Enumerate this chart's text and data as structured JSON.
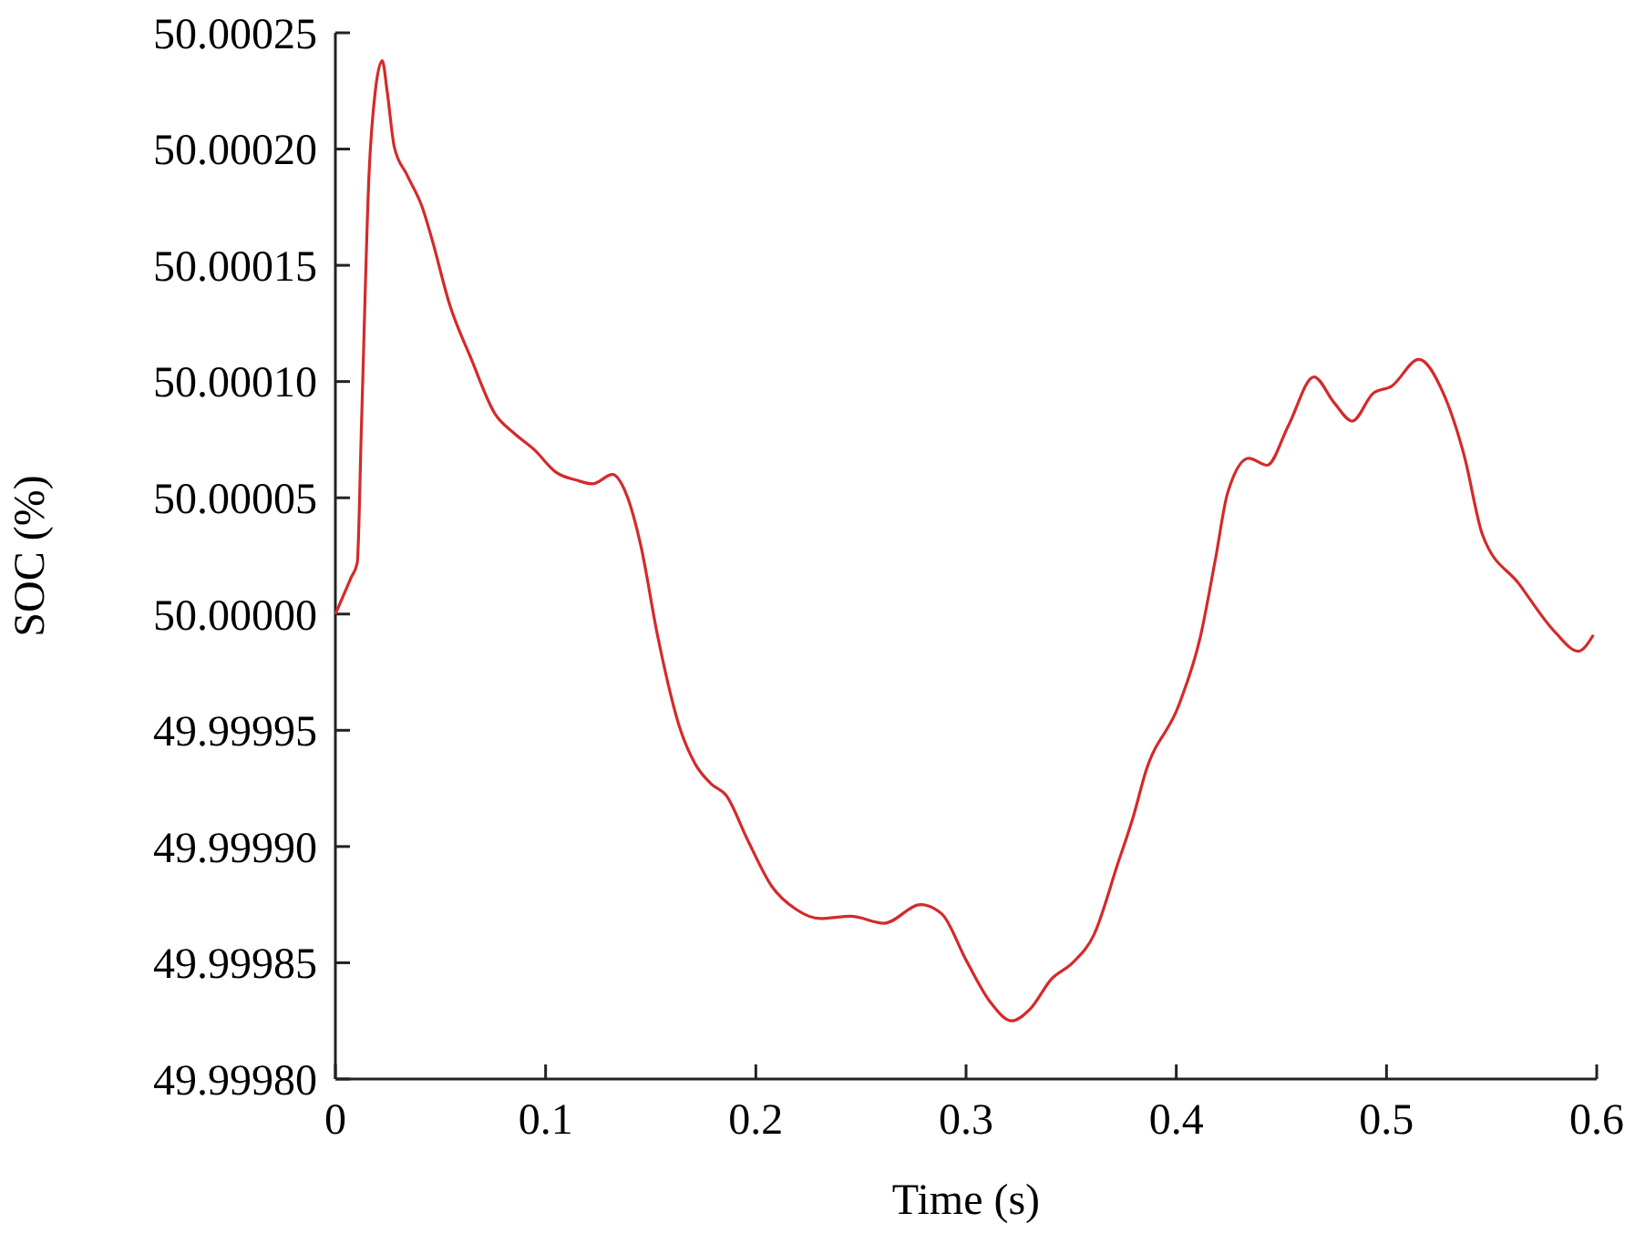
{
  "chart_data": {
    "type": "line",
    "xlabel": "Time (s)",
    "ylabel": "SOC (%)",
    "xlim": [
      0,
      0.6
    ],
    "xticks": [
      0,
      0.1,
      0.2,
      0.3,
      0.4,
      0.5,
      0.6
    ],
    "ylim": [
      49.9998,
      50.00025
    ],
    "yticks": [
      {
        "value": 49.9998,
        "label": "49.99980"
      },
      {
        "value": 49.99985,
        "label": "49.99985"
      },
      {
        "value": 49.9999,
        "label": "49.99990"
      },
      {
        "value": 49.99995,
        "label": "49.99995"
      },
      {
        "value": 50,
        "label": "50.00000"
      },
      {
        "value": 50.00005,
        "label": "50.00005"
      },
      {
        "value": 50.0001,
        "label": "50.00010"
      },
      {
        "value": 50.00015,
        "label": "50.00015"
      },
      {
        "value": 50.0002,
        "label": "50.00020"
      },
      {
        "value": 50.00025,
        "label": "50.00025"
      }
    ],
    "marker": "none",
    "line_style": "solid",
    "series": [
      {
        "color": "#d42a2a",
        "x": [
          0,
          0.0075,
          0.0104,
          0.0124,
          0.016,
          0.019,
          0.0223,
          0.0246,
          0.028,
          0.034,
          0.0413,
          0.0457,
          0.0544,
          0.0645,
          0.076,
          0.0847,
          0.0948,
          0.1049,
          0.115,
          0.1223,
          0.1318,
          0.1382,
          0.1454,
          0.1532,
          0.1642,
          0.1715,
          0.1787,
          0.1859,
          0.196,
          0.2075,
          0.2191,
          0.2307,
          0.2452,
          0.261,
          0.2784,
          0.2885,
          0.3001,
          0.3116,
          0.3218,
          0.3304,
          0.3406,
          0.3507,
          0.3608,
          0.3723,
          0.3796,
          0.3854,
          0.4013,
          0.4114,
          0.4186,
          0.4244,
          0.4345,
          0.4432,
          0.4533,
          0.4655,
          0.475,
          0.4837,
          0.4937,
          0.5024,
          0.5154,
          0.527,
          0.537,
          0.5457,
          0.563,
          0.5804,
          0.5912,
          0.5984
        ],
        "values": [
          50,
          50.0000157,
          50.000022,
          50.000081,
          50.000189,
          50.000225,
          50.000238,
          50.000225,
          50.000201,
          50.000189,
          50.000175,
          50.000162,
          50.000133,
          50.00011,
          50.000086,
          50.000078,
          50.0000705,
          50.000061,
          50.0000575,
          50.000056,
          50.00006,
          50.000052,
          50.000029,
          49.999991,
          49.99995,
          49.999935,
          49.999927,
          49.999922,
          49.999903,
          49.999883,
          49.999873,
          49.999869,
          49.99987,
          49.999867,
          49.999875,
          49.999871,
          49.999851,
          49.999833,
          49.999825,
          49.99983,
          49.999843,
          49.99985,
          49.999862,
          49.999893,
          49.999913,
          49.999932,
          49.999961,
          49.99999,
          50.0000235,
          50.000052,
          50.000067,
          50.000064,
          50.000081,
          50.000102,
          50.000091,
          50.000083,
          50.000095,
          50.000098,
          50.0001095,
          50.000095,
          50.000068,
          50.000034,
          50.000013,
          49.999992,
          49.999984,
          49.999991
        ]
      }
    ]
  }
}
